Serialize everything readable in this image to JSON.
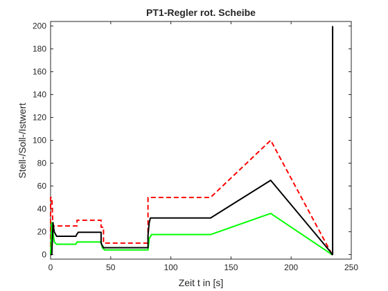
{
  "chart_data": {
    "type": "line",
    "title": "PT1-Regler rot. Scheibe",
    "xlabel": "Zeit t in [s]",
    "ylabel": "Stell-/Soll-/Istwert",
    "xlim": [
      0,
      250
    ],
    "ylim": [
      -4,
      204
    ],
    "xticks": [
      "0",
      "50",
      "100",
      "150",
      "200",
      "250"
    ],
    "yticks": [
      "0",
      "20",
      "40",
      "60",
      "80",
      "100",
      "120",
      "140",
      "160",
      "180",
      "200"
    ],
    "grid": false,
    "legend": "none",
    "series": [
      {
        "color": "#ff0000",
        "dash": "dashed",
        "x": [
          0,
          0,
          1,
          2,
          2,
          20,
          22,
          22,
          42,
          42,
          44,
          44,
          80,
          81,
          81,
          133,
          183,
          233,
          234
        ],
        "y": [
          0,
          50,
          50,
          25,
          25,
          25,
          25,
          30,
          30,
          24,
          24,
          10,
          10,
          10,
          50,
          50,
          100,
          2,
          0
        ]
      },
      {
        "color": "#000000",
        "dash": "solid",
        "x": [
          0,
          1,
          2,
          3,
          5,
          21,
          22,
          23,
          42,
          42,
          44,
          81,
          81,
          82,
          83,
          133,
          183,
          233,
          234,
          234.5,
          234.5
        ],
        "y": [
          0,
          0,
          28,
          20,
          16,
          16,
          18,
          19.5,
          19.5,
          10,
          6,
          6,
          17,
          28,
          32,
          32,
          65,
          2,
          0,
          0,
          200
        ]
      },
      {
        "color": "#00ff00",
        "dash": "solid",
        "x": [
          0,
          1,
          3,
          5,
          21,
          22,
          23,
          42,
          43,
          45,
          81,
          82,
          84,
          133,
          183,
          234
        ],
        "y": [
          0,
          28,
          11,
          9,
          9,
          11,
          11,
          11,
          6,
          4,
          4,
          14,
          17.5,
          17.5,
          36,
          0
        ]
      }
    ]
  }
}
